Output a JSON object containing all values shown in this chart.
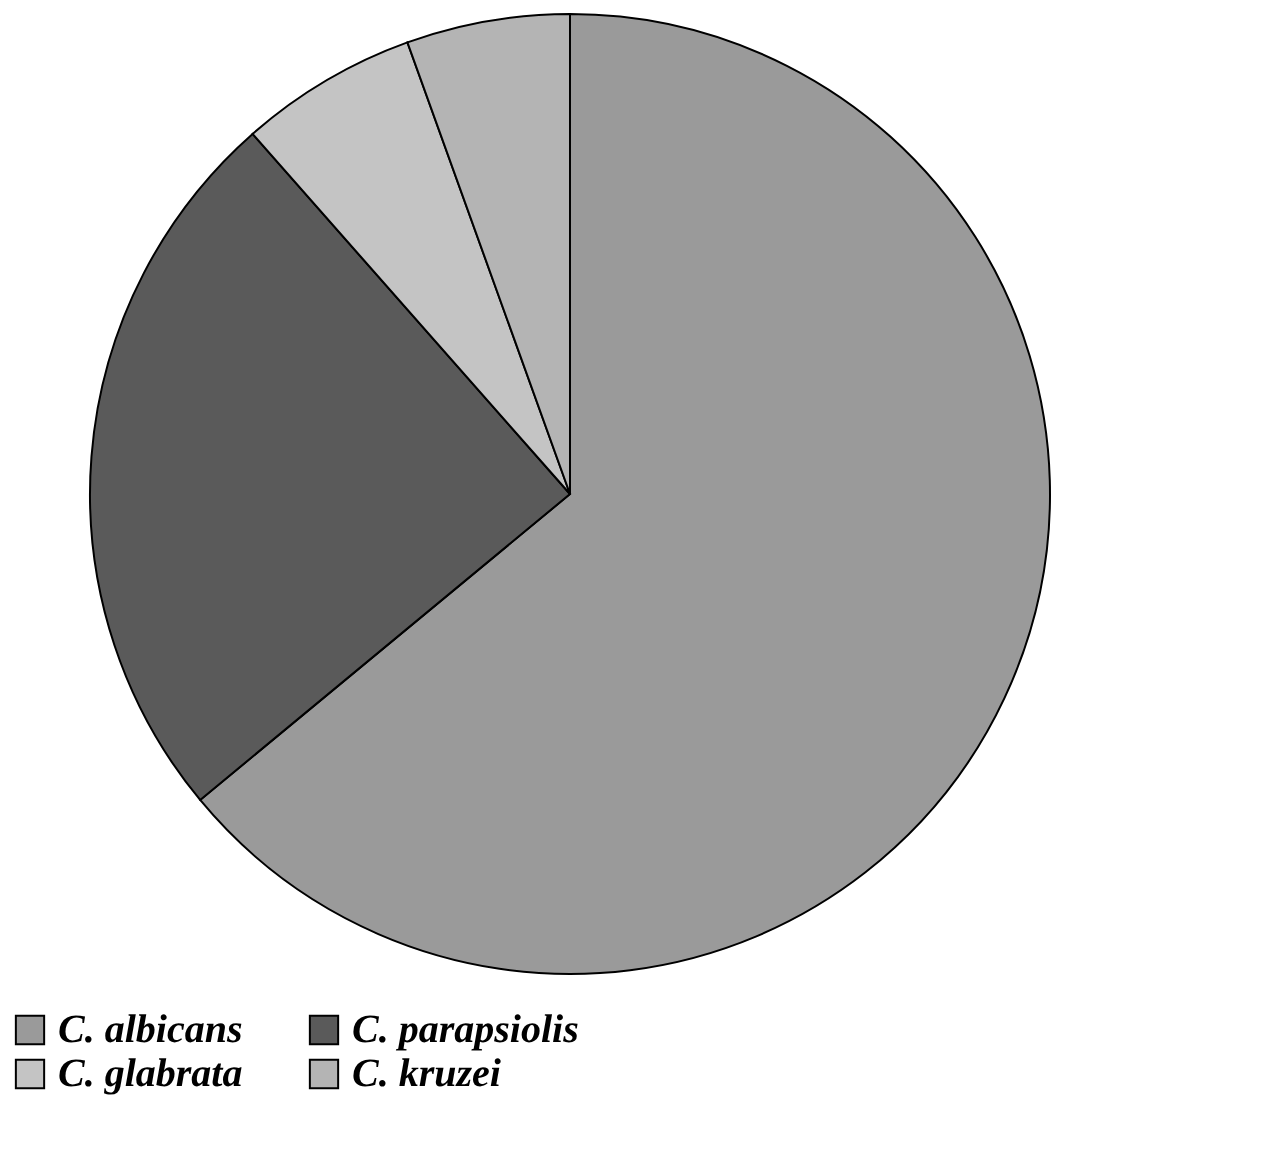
{
  "chart_data": {
    "type": "pie",
    "categories": [
      "C. albicans",
      "C. parapsiolis",
      "C. glabrata",
      "C. kruzei"
    ],
    "values": [
      64,
      24.5,
      6,
      5.5
    ],
    "colors": [
      "#9a9a9a",
      "#5a5a5a",
      "#c4c4c4",
      "#b4b4b4"
    ],
    "legend": "bottom"
  }
}
